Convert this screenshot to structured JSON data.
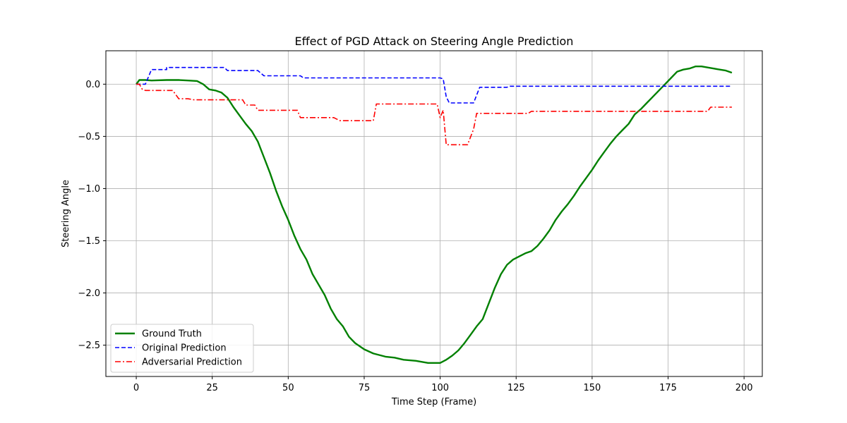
{
  "chart_data": {
    "type": "line",
    "title": "Effect of PGD Attack on Steering Angle Prediction",
    "xlabel": "Time Step (Frame)",
    "ylabel": "Steering Angle",
    "xlim": [
      -10,
      206
    ],
    "ylim": [
      -2.8,
      0.32
    ],
    "xticks": [
      0,
      25,
      50,
      75,
      100,
      125,
      150,
      175,
      200
    ],
    "xtick_labels": [
      "0",
      "25",
      "50",
      "75",
      "100",
      "125",
      "150",
      "175",
      "200"
    ],
    "yticks": [
      0.0,
      -0.5,
      -1.0,
      -1.5,
      -2.0,
      -2.5
    ],
    "ytick_labels": [
      "0.0",
      "−0.5",
      "−1.0",
      "−1.5",
      "−2.0",
      "−2.5"
    ],
    "grid": true,
    "legend_position": "lower-left",
    "series": [
      {
        "name": "Ground Truth",
        "color": "#008000",
        "dash": "solid",
        "points": [
          [
            0,
            0.0
          ],
          [
            1,
            0.04
          ],
          [
            3,
            0.04
          ],
          [
            5,
            0.035
          ],
          [
            10,
            0.04
          ],
          [
            14,
            0.04
          ],
          [
            17,
            0.035
          ],
          [
            20,
            0.03
          ],
          [
            22,
            0.0
          ],
          [
            24,
            -0.05
          ],
          [
            26,
            -0.06
          ],
          [
            28,
            -0.08
          ],
          [
            30,
            -0.13
          ],
          [
            32,
            -0.22
          ],
          [
            34,
            -0.3
          ],
          [
            36,
            -0.38
          ],
          [
            38,
            -0.45
          ],
          [
            40,
            -0.55
          ],
          [
            42,
            -0.7
          ],
          [
            44,
            -0.85
          ],
          [
            46,
            -1.02
          ],
          [
            48,
            -1.17
          ],
          [
            50,
            -1.3
          ],
          [
            52,
            -1.45
          ],
          [
            54,
            -1.58
          ],
          [
            56,
            -1.68
          ],
          [
            58,
            -1.82
          ],
          [
            60,
            -1.92
          ],
          [
            62,
            -2.02
          ],
          [
            64,
            -2.15
          ],
          [
            66,
            -2.25
          ],
          [
            68,
            -2.32
          ],
          [
            70,
            -2.42
          ],
          [
            72,
            -2.48
          ],
          [
            75,
            -2.54
          ],
          [
            78,
            -2.58
          ],
          [
            82,
            -2.61
          ],
          [
            85,
            -2.62
          ],
          [
            88,
            -2.64
          ],
          [
            92,
            -2.65
          ],
          [
            96,
            -2.67
          ],
          [
            100,
            -2.67
          ],
          [
            102,
            -2.64
          ],
          [
            104,
            -2.6
          ],
          [
            106,
            -2.55
          ],
          [
            108,
            -2.48
          ],
          [
            110,
            -2.4
          ],
          [
            112,
            -2.32
          ],
          [
            114,
            -2.25
          ],
          [
            116,
            -2.1
          ],
          [
            118,
            -1.95
          ],
          [
            120,
            -1.82
          ],
          [
            122,
            -1.73
          ],
          [
            124,
            -1.68
          ],
          [
            126,
            -1.65
          ],
          [
            128,
            -1.62
          ],
          [
            130,
            -1.6
          ],
          [
            132,
            -1.55
          ],
          [
            134,
            -1.48
          ],
          [
            136,
            -1.4
          ],
          [
            138,
            -1.3
          ],
          [
            140,
            -1.22
          ],
          [
            142,
            -1.15
          ],
          [
            144,
            -1.07
          ],
          [
            146,
            -0.98
          ],
          [
            148,
            -0.9
          ],
          [
            150,
            -0.82
          ],
          [
            152,
            -0.73
          ],
          [
            154,
            -0.65
          ],
          [
            156,
            -0.57
          ],
          [
            158,
            -0.5
          ],
          [
            160,
            -0.44
          ],
          [
            162,
            -0.38
          ],
          [
            164,
            -0.29
          ],
          [
            166,
            -0.24
          ],
          [
            168,
            -0.18
          ],
          [
            170,
            -0.12
          ],
          [
            172,
            -0.06
          ],
          [
            174,
            0.0
          ],
          [
            176,
            0.06
          ],
          [
            178,
            0.12
          ],
          [
            180,
            0.14
          ],
          [
            182,
            0.15
          ],
          [
            184,
            0.17
          ],
          [
            186,
            0.17
          ],
          [
            188,
            0.16
          ],
          [
            190,
            0.15
          ],
          [
            192,
            0.14
          ],
          [
            194,
            0.13
          ],
          [
            196,
            0.11
          ]
        ]
      },
      {
        "name": "Original Prediction",
        "color": "#0000ff",
        "dash": "6,3",
        "points": [
          [
            0,
            0.0
          ],
          [
            1,
            0.0
          ],
          [
            3,
            0.0
          ],
          [
            5,
            0.14
          ],
          [
            10,
            0.14
          ],
          [
            10,
            0.16
          ],
          [
            29,
            0.16
          ],
          [
            30,
            0.13
          ],
          [
            40,
            0.13
          ],
          [
            42,
            0.08
          ],
          [
            54,
            0.08
          ],
          [
            55,
            0.06
          ],
          [
            100,
            0.06
          ],
          [
            101,
            0.05
          ],
          [
            102,
            -0.12
          ],
          [
            103,
            -0.18
          ],
          [
            111,
            -0.18
          ],
          [
            113,
            -0.03
          ],
          [
            122,
            -0.03
          ],
          [
            123,
            -0.02
          ],
          [
            196,
            -0.02
          ]
        ]
      },
      {
        "name": "Adversarial Prediction",
        "color": "#ff0000",
        "dash": "8,3,2,3",
        "points": [
          [
            0,
            0.0
          ],
          [
            1,
            0.0
          ],
          [
            2,
            -0.05
          ],
          [
            3,
            -0.06
          ],
          [
            12,
            -0.06
          ],
          [
            14,
            -0.14
          ],
          [
            17,
            -0.14
          ],
          [
            19,
            -0.15
          ],
          [
            35,
            -0.15
          ],
          [
            36,
            -0.2
          ],
          [
            39,
            -0.2
          ],
          [
            40,
            -0.25
          ],
          [
            53,
            -0.25
          ],
          [
            54,
            -0.32
          ],
          [
            65,
            -0.32
          ],
          [
            67,
            -0.35
          ],
          [
            78,
            -0.35
          ],
          [
            79,
            -0.19
          ],
          [
            99,
            -0.19
          ],
          [
            100,
            -0.32
          ],
          [
            101,
            -0.25
          ],
          [
            102,
            -0.58
          ],
          [
            109,
            -0.58
          ],
          [
            111,
            -0.43
          ],
          [
            112,
            -0.28
          ],
          [
            129,
            -0.28
          ],
          [
            130,
            -0.26
          ],
          [
            188,
            -0.26
          ],
          [
            189,
            -0.22
          ],
          [
            196,
            -0.22
          ]
        ]
      }
    ]
  }
}
